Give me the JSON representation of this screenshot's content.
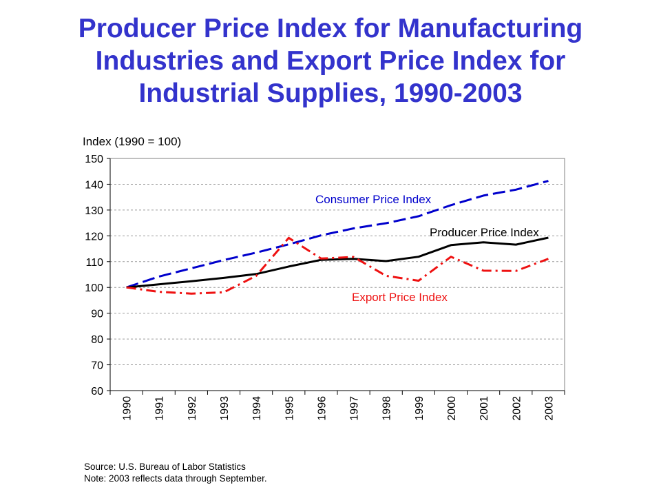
{
  "title_lines": [
    "Producer Price Index for Manufacturing",
    "Industries and Export Price Index for",
    "Industrial Supplies, 1990-2003"
  ],
  "source_note": "Source:  U.S. Bureau of Labor Statistics",
  "date_note": "Note:  2003 reflects data through September.",
  "colors": {
    "title": "#3333cc",
    "cpi": "#0000cc",
    "ppi": "#000000",
    "export": "#ee1111"
  },
  "chart_data": {
    "type": "line",
    "title": "Producer Price Index for Manufacturing Industries and Export Price Index for Industrial Supplies, 1990-2003",
    "ylabel": "Index (1990 = 100)",
    "xlabel": "",
    "categories": [
      "1990",
      "1991",
      "1992",
      "1993",
      "1994",
      "1995",
      "1996",
      "1997",
      "1998",
      "1999",
      "2000",
      "2001",
      "2002",
      "2003"
    ],
    "yticks": [
      60,
      70,
      80,
      90,
      100,
      110,
      120,
      130,
      140,
      150
    ],
    "ylim": [
      60,
      150
    ],
    "grid": "horizontal dashed",
    "series": [
      {
        "name": "Consumer Price Index",
        "style": "dashed",
        "color": "#0000cc",
        "values": [
          100,
          104.2,
          107.4,
          110.6,
          113.5,
          116.7,
          120.2,
          122.9,
          124.9,
          127.6,
          131.9,
          135.6,
          137.9,
          141.3
        ]
      },
      {
        "name": "Producer Price Index",
        "style": "solid",
        "color": "#000000",
        "values": [
          100,
          101.2,
          102.4,
          103.7,
          105.2,
          108.1,
          110.7,
          111.1,
          110.2,
          111.9,
          116.4,
          117.5,
          116.6,
          119.3
        ]
      },
      {
        "name": "Export Price Index",
        "style": "dash-dot",
        "color": "#ee1111",
        "values": [
          100,
          98.3,
          97.6,
          98.1,
          104.5,
          119.2,
          111.2,
          111.8,
          104.5,
          102.6,
          111.9,
          106.5,
          106.4,
          111.1
        ]
      }
    ]
  }
}
